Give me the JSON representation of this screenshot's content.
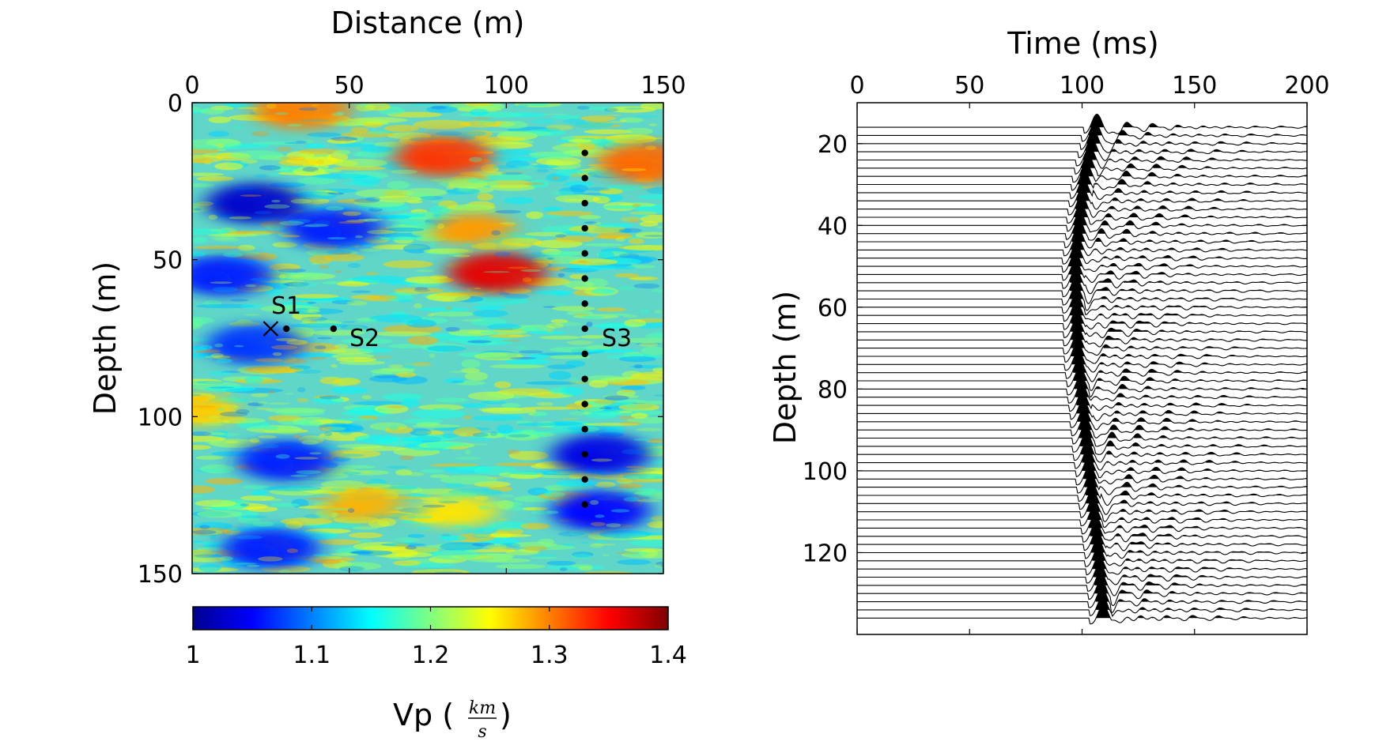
{
  "chart_data": [
    {
      "type": "heatmap",
      "title": "",
      "xlabel": "Distance (m)",
      "ylabel": "Depth (m)",
      "x_axis_position": "top",
      "xlim": [
        0,
        150
      ],
      "ylim": [
        0,
        150
      ],
      "y_inverted": true,
      "xticks": [
        "0",
        "50",
        "100",
        "150"
      ],
      "yticks": [
        "0",
        "50",
        "100",
        "150"
      ],
      "colorbar": {
        "label_prefix": "Vp (",
        "label_num": "km",
        "label_den": "s",
        "label_suffix": ")",
        "range": [
          1,
          1.4
        ],
        "ticks": [
          "1",
          "1.1",
          "1.2",
          "1.3",
          "1.4"
        ],
        "colormap": "jet",
        "orientation": "horizontal"
      },
      "velocity_anomalies": [
        {
          "x": 80,
          "y": 17,
          "vp": 1.33
        },
        {
          "x": 145,
          "y": 19,
          "vp": 1.31
        },
        {
          "x": 97,
          "y": 54,
          "vp": 1.36
        },
        {
          "x": 90,
          "y": 40,
          "vp": 1.29
        },
        {
          "x": 35,
          "y": 2,
          "vp": 1.3
        },
        {
          "x": 20,
          "y": 32,
          "vp": 1.03
        },
        {
          "x": 45,
          "y": 40,
          "vp": 1.06
        },
        {
          "x": 10,
          "y": 55,
          "vp": 1.06
        },
        {
          "x": 20,
          "y": 77,
          "vp": 1.07
        },
        {
          "x": 130,
          "y": 112,
          "vp": 1.04
        },
        {
          "x": 30,
          "y": 114,
          "vp": 1.06
        },
        {
          "x": 130,
          "y": 130,
          "vp": 1.05
        },
        {
          "x": 25,
          "y": 142,
          "vp": 1.06
        },
        {
          "x": 55,
          "y": 128,
          "vp": 1.28
        },
        {
          "x": 2,
          "y": 98,
          "vp": 1.27
        },
        {
          "x": 85,
          "y": 130,
          "vp": 1.26
        }
      ],
      "sources": [
        {
          "label": "S1",
          "cross": {
            "x": 25,
            "y": 72
          },
          "points": [
            {
              "x": 30,
              "y": 72
            }
          ]
        },
        {
          "label": "S2",
          "points": [
            {
              "x": 45,
              "y": 72
            }
          ]
        },
        {
          "label": "S3",
          "points": [
            {
              "x": 125,
              "y": 16
            },
            {
              "x": 125,
              "y": 24
            },
            {
              "x": 125,
              "y": 32
            },
            {
              "x": 125,
              "y": 40
            },
            {
              "x": 125,
              "y": 48
            },
            {
              "x": 125,
              "y": 56
            },
            {
              "x": 125,
              "y": 64
            },
            {
              "x": 125,
              "y": 72
            },
            {
              "x": 125,
              "y": 80
            },
            {
              "x": 125,
              "y": 88
            },
            {
              "x": 125,
              "y": 96
            },
            {
              "x": 125,
              "y": 104
            },
            {
              "x": 125,
              "y": 112
            },
            {
              "x": 125,
              "y": 120
            },
            {
              "x": 125,
              "y": 128
            }
          ]
        }
      ]
    },
    {
      "type": "line",
      "subtype": "seismic-wiggle",
      "title": "",
      "xlabel": "Time (ms)",
      "ylabel": "Depth (m)",
      "x_axis_position": "top",
      "xlim": [
        0,
        200
      ],
      "ylim": [
        10,
        140
      ],
      "y_inverted": true,
      "xticks": [
        "0",
        "50",
        "100",
        "150",
        "200"
      ],
      "yticks": [
        "20",
        "40",
        "60",
        "80",
        "100",
        "120"
      ],
      "trace_depths": {
        "start": 16,
        "end": 137,
        "step": 2
      },
      "first_arrival": [
        {
          "depth": 10,
          "time": 109
        },
        {
          "depth": 30,
          "time": 101
        },
        {
          "depth": 50,
          "time": 97
        },
        {
          "depth": 72,
          "time": 98
        },
        {
          "depth": 100,
          "time": 103
        },
        {
          "depth": 120,
          "time": 107
        },
        {
          "depth": 140,
          "time": 110
        }
      ]
    }
  ]
}
